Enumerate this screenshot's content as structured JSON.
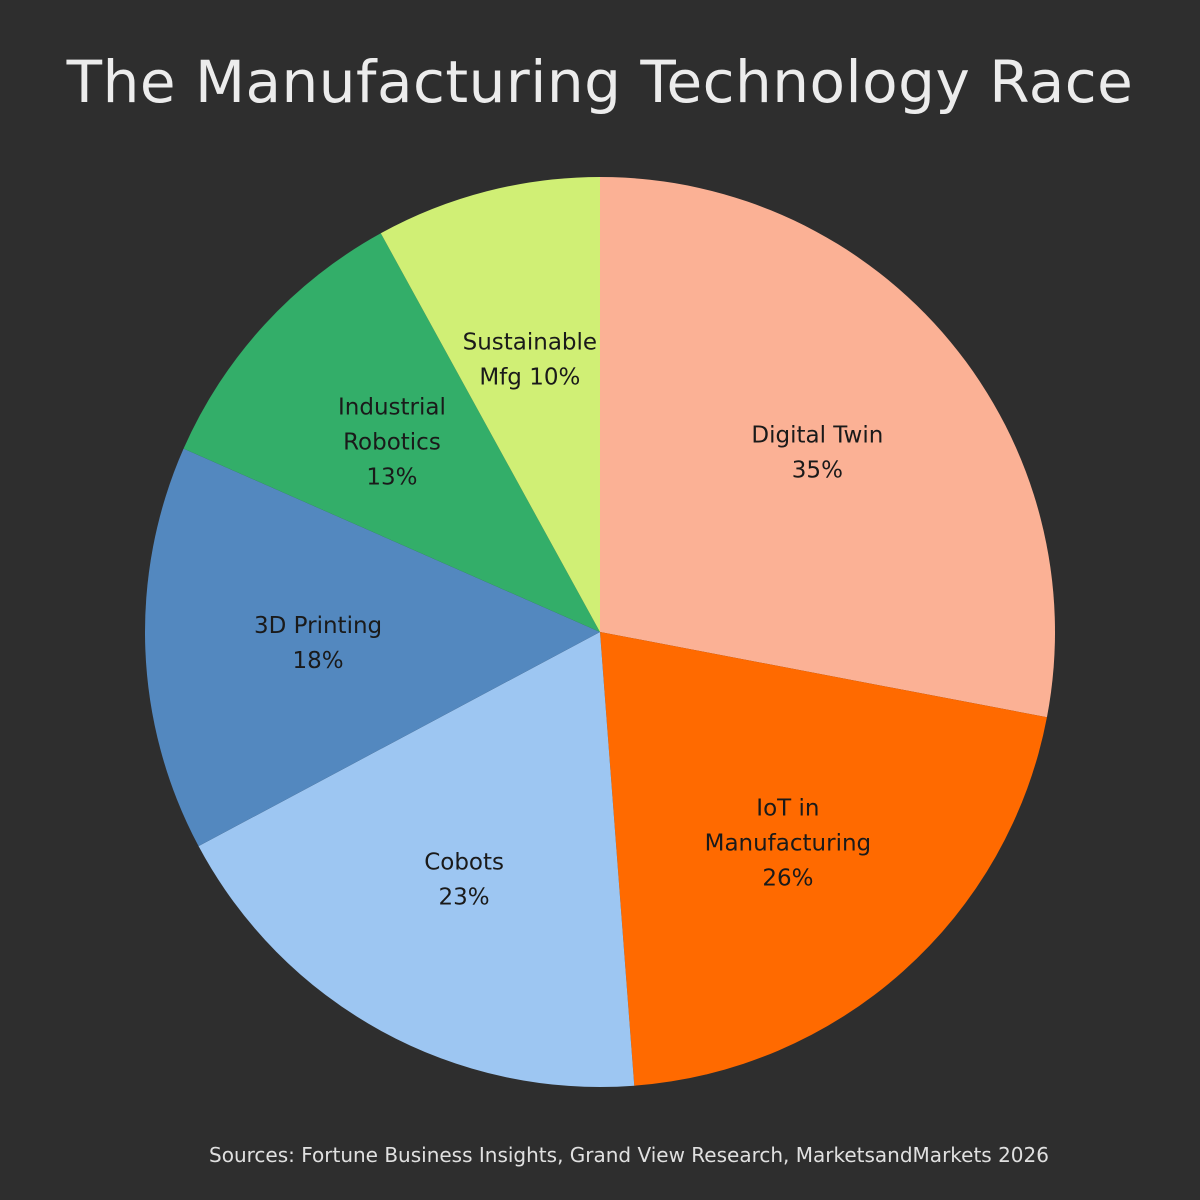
{
  "chart_data": {
    "type": "pie",
    "title": "The Manufacturing Technology Race",
    "source": "Sources: Fortune Business Insights, Grand View Research, MarketsandMarkets 2026",
    "start_angle_deg": 0,
    "direction": "clockwise",
    "slices": [
      {
        "label": "Digital Twin",
        "label_lines": [
          "Digital Twin",
          "35%"
        ],
        "value": 35,
        "percent_label": "35%",
        "color": "#fbb195"
      },
      {
        "label": "IoT in Manufacturing",
        "label_lines": [
          "IoT in",
          "Manufacturing",
          "26%"
        ],
        "value": 26,
        "percent_label": "26%",
        "color": "#ff6a00"
      },
      {
        "label": "Cobots",
        "label_lines": [
          "Cobots",
          "23%"
        ],
        "value": 23,
        "percent_label": "23%",
        "color": "#9dc6f2"
      },
      {
        "label": "3D Printing",
        "label_lines": [
          "3D Printing",
          "18%"
        ],
        "value": 18,
        "percent_label": "18%",
        "color": "#5388bf"
      },
      {
        "label": "Industrial Robotics",
        "label_lines": [
          "Industrial",
          "Robotics",
          "13%"
        ],
        "value": 13,
        "percent_label": "13%",
        "color": "#33ae69"
      },
      {
        "label": "Sustainable Mfg",
        "label_lines": [
          "Sustainable",
          "Mfg 10%"
        ],
        "value": 10,
        "percent_label": "10%",
        "color": "#d0ef75"
      }
    ]
  }
}
